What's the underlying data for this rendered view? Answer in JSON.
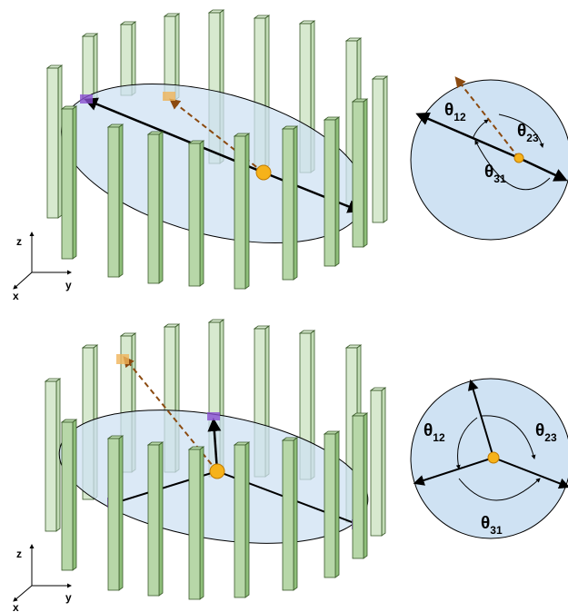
{
  "panels": [
    {
      "axes": {
        "z": "z",
        "y": "y",
        "x": "x"
      },
      "angles": [
        {
          "symbol": "θ",
          "sub": "12"
        },
        {
          "symbol": "θ",
          "sub": "23"
        },
        {
          "symbol": "θ",
          "sub": "31"
        }
      ]
    },
    {
      "axes": {
        "z": "z",
        "y": "y",
        "x": "x"
      },
      "angles": [
        {
          "symbol": "θ",
          "sub": "12"
        },
        {
          "symbol": "θ",
          "sub": "23"
        },
        {
          "symbol": "θ",
          "sub": "31"
        }
      ]
    }
  ],
  "colors": {
    "pillar_front": "#b7d7a8",
    "pillar_side": "#8fbf7a",
    "pillar_stroke": "#3a5a2a",
    "disk_fill": "#cfe2f3",
    "center_dot": "#f6b21a",
    "dashed_arrow": "#8b4a10",
    "contact_purple": "#8a4fd1",
    "contact_orange": "#f0b45a"
  }
}
